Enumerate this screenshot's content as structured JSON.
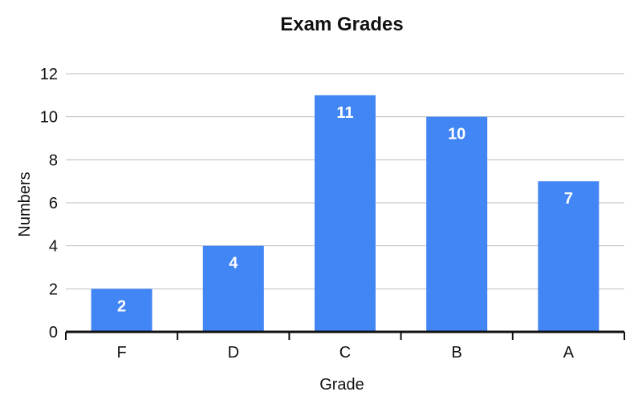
{
  "chart_data": {
    "type": "bar",
    "title": "Exam Grades",
    "xlabel": "Grade",
    "ylabel": "Numbers",
    "categories": [
      "F",
      "D",
      "C",
      "B",
      "A"
    ],
    "values": [
      2,
      4,
      11,
      10,
      7
    ],
    "ylim": [
      0,
      12
    ],
    "yticks": [
      0,
      2,
      4,
      6,
      8,
      10,
      12
    ],
    "grid": true,
    "legend": "none",
    "colors": {
      "bar": "#4285F4",
      "grid": "#BDBDBD",
      "axis": "#111111",
      "text": "#111111",
      "data_label": "#FFFFFF"
    }
  }
}
